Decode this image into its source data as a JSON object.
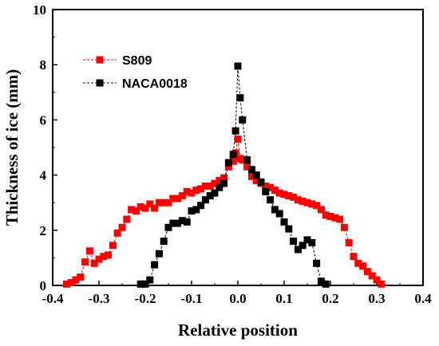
{
  "chart_data": {
    "type": "line",
    "title": "",
    "xlabel": "Relative position",
    "ylabel": "Thickness of ice (mm)",
    "xlim": [
      -0.4,
      0.4
    ],
    "ylim": [
      0,
      10
    ],
    "xticks": [
      -0.4,
      -0.3,
      -0.2,
      -0.1,
      0.0,
      0.1,
      0.2,
      0.3,
      0.4
    ],
    "xtick_labels": [
      "-0.4",
      "-0.3",
      "-0.2",
      "-0.1",
      "0.0",
      "0.1",
      "0.2",
      "0.3",
      "0.4"
    ],
    "yticks": [
      0,
      2,
      4,
      6,
      8,
      10
    ],
    "ytick_labels": [
      "0",
      "2",
      "4",
      "6",
      "8",
      "10"
    ],
    "grid": false,
    "legend_position": "top-left",
    "series": [
      {
        "name": "S809",
        "color": "#ff0000",
        "marker": "square",
        "line_style": "dashed",
        "x": [
          -0.37,
          -0.36,
          -0.35,
          -0.34,
          -0.33,
          -0.32,
          -0.31,
          -0.3,
          -0.29,
          -0.28,
          -0.27,
          -0.26,
          -0.25,
          -0.24,
          -0.23,
          -0.22,
          -0.21,
          -0.2,
          -0.19,
          -0.18,
          -0.17,
          -0.16,
          -0.15,
          -0.14,
          -0.13,
          -0.12,
          -0.11,
          -0.1,
          -0.09,
          -0.08,
          -0.07,
          -0.06,
          -0.05,
          -0.04,
          -0.03,
          -0.02,
          -0.01,
          -0.005,
          0.0,
          0.005,
          0.01,
          0.02,
          0.03,
          0.04,
          0.05,
          0.06,
          0.07,
          0.08,
          0.09,
          0.1,
          0.11,
          0.12,
          0.13,
          0.14,
          0.15,
          0.16,
          0.17,
          0.18,
          0.19,
          0.2,
          0.21,
          0.22,
          0.23,
          0.24,
          0.25,
          0.26,
          0.27,
          0.28,
          0.29,
          0.3,
          0.31
        ],
        "y": [
          0.05,
          0.1,
          0.2,
          0.3,
          0.85,
          1.25,
          0.8,
          0.95,
          1.05,
          1.1,
          1.45,
          1.9,
          2.1,
          2.4,
          2.75,
          2.7,
          2.85,
          2.8,
          2.95,
          2.8,
          3.0,
          3.0,
          3.0,
          3.15,
          3.15,
          3.25,
          3.4,
          3.35,
          3.45,
          3.5,
          3.6,
          3.6,
          3.7,
          3.8,
          3.9,
          4.3,
          4.5,
          4.8,
          5.3,
          4.6,
          4.55,
          4.3,
          3.95,
          3.8,
          3.7,
          3.6,
          3.55,
          3.45,
          3.35,
          3.3,
          3.25,
          3.2,
          3.1,
          3.05,
          3.0,
          2.95,
          2.9,
          2.75,
          2.55,
          2.5,
          2.45,
          2.4,
          2.1,
          1.55,
          1.05,
          0.8,
          0.7,
          0.5,
          0.35,
          0.2,
          0.05
        ]
      },
      {
        "name": "NACA0018",
        "color": "#000000",
        "marker": "square",
        "line_style": "dashed",
        "x": [
          -0.21,
          -0.2,
          -0.19,
          -0.18,
          -0.17,
          -0.16,
          -0.15,
          -0.14,
          -0.13,
          -0.12,
          -0.11,
          -0.1,
          -0.09,
          -0.08,
          -0.07,
          -0.06,
          -0.05,
          -0.04,
          -0.03,
          -0.02,
          -0.01,
          -0.005,
          0.0,
          0.005,
          0.01,
          0.02,
          0.03,
          0.04,
          0.05,
          0.06,
          0.07,
          0.08,
          0.09,
          0.1,
          0.11,
          0.12,
          0.13,
          0.14,
          0.15,
          0.16,
          0.17,
          0.18,
          0.19
        ],
        "y": [
          0.05,
          0.05,
          0.2,
          0.75,
          1.15,
          1.6,
          2.1,
          2.25,
          2.25,
          2.35,
          2.3,
          2.7,
          2.75,
          2.9,
          3.1,
          3.25,
          3.35,
          3.55,
          3.7,
          4.45,
          4.75,
          5.6,
          7.95,
          6.8,
          6.0,
          4.55,
          4.2,
          4.0,
          3.75,
          3.4,
          3.1,
          2.75,
          2.6,
          2.3,
          2.05,
          1.6,
          1.3,
          1.45,
          1.65,
          1.55,
          0.8,
          0.15,
          0.05
        ]
      }
    ]
  }
}
